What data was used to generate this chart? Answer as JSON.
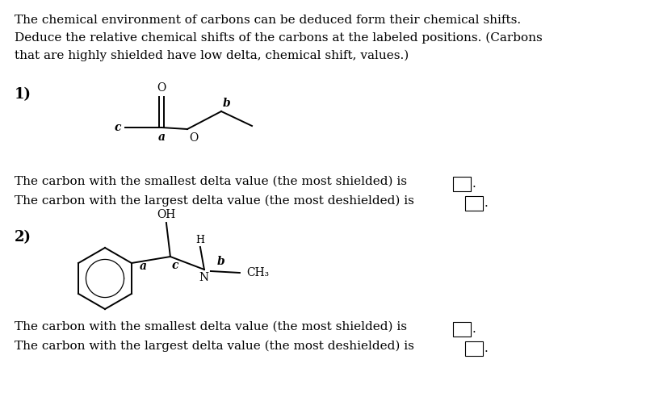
{
  "bg_color": "#ffffff",
  "title_lines": [
    "The chemical environment of carbons can be deduced form their chemical shifts.",
    "Deduce the relative chemical shifts of the carbons at the labeled positions. (Carbons",
    "that are highly shielded have low delta, chemical shift, values.)"
  ],
  "q1_label": "1)",
  "q1_line1": "The carbon with the smallest delta value (the most shielded) is",
  "q1_line2": "The carbon with the largest delta value (the most deshielded) is",
  "q2_label": "2)",
  "q2_line1": "The carbon with the smallest delta value (the most shielded) is",
  "q2_line2": "The carbon with the largest delta value (the most deshielded) is",
  "text_color": "#000000",
  "font_size_body": 11.0,
  "font_size_label": 13,
  "font_size_mol": 10
}
